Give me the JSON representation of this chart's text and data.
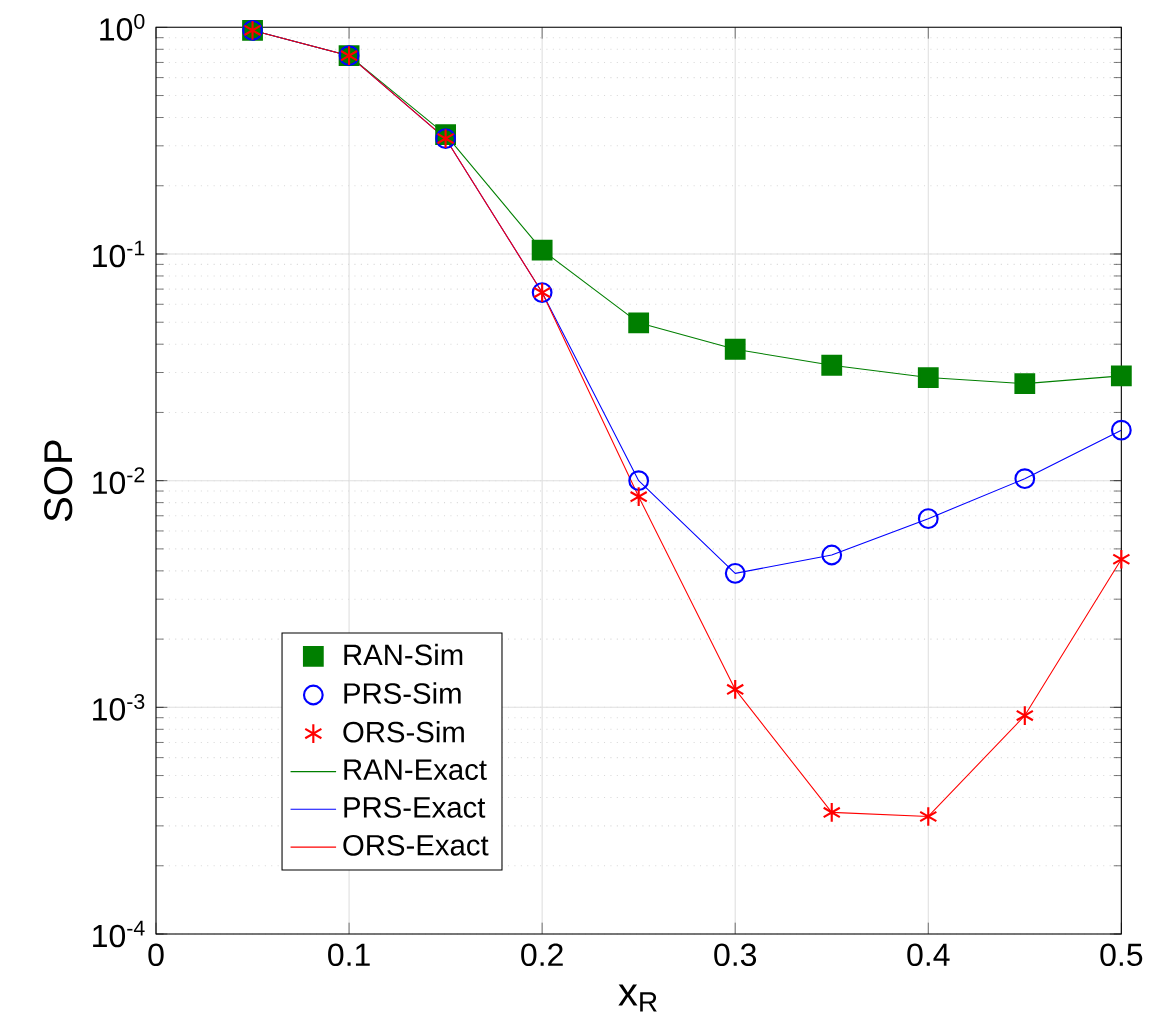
{
  "chart_data": {
    "type": "line",
    "xlabel": "x$_{R}$",
    "ylabel": "SOP",
    "log": "y",
    "grid": true,
    "legend": "bottom left",
    "xlim": [
      0,
      0.5
    ],
    "xticks": [
      0,
      0.1,
      0.2,
      0.3,
      0.4,
      0.5
    ],
    "ylim": [
      0.0001,
      1
    ],
    "yticks": [
      {
        "value": 0.0001,
        "label": "10$^{-4}$"
      },
      {
        "value": 0.001,
        "label": "10$^{-3}$"
      },
      {
        "value": 0.01,
        "label": "10$^{-2}$"
      },
      {
        "value": 0.1,
        "label": "10$^{-1}$"
      },
      {
        "value": 1,
        "label": "10$^{0}$"
      }
    ],
    "x": [
      0.05,
      0.1,
      0.15,
      0.2,
      0.25,
      0.3,
      0.35,
      0.4,
      0.45,
      0.5
    ],
    "series": [
      {
        "name": "RAN-Sim",
        "type": "scatter",
        "marker": "square",
        "color": "#007f00",
        "values": [
          0.97,
          0.75,
          0.336,
          0.104,
          0.0497,
          0.038,
          0.0323,
          0.0285,
          0.0268,
          0.029
        ]
      },
      {
        "name": "PRS-Sim",
        "type": "scatter",
        "marker": "circle",
        "color": "#0000ff",
        "values": [
          0.97,
          0.75,
          0.323,
          0.0676,
          0.01,
          0.0039,
          0.0047,
          0.0068,
          0.0102,
          0.0167
        ]
      },
      {
        "name": "ORS-Sim",
        "type": "scatter",
        "marker": "cross",
        "color": "#ff0000",
        "values": [
          0.97,
          0.75,
          0.323,
          0.0676,
          0.0085,
          0.0012,
          0.000344,
          0.00033,
          0.00092,
          0.0045
        ]
      },
      {
        "name": "RAN-Exact",
        "marker": "none",
        "color": "#007f00",
        "values": [
          0.97,
          0.75,
          0.336,
          0.104,
          0.0497,
          0.038,
          0.0323,
          0.0285,
          0.0268,
          0.029
        ]
      },
      {
        "name": "PRS-Exact",
        "marker": "none",
        "color": "#0000ff",
        "values": [
          0.97,
          0.75,
          0.323,
          0.0676,
          0.01,
          0.0039,
          0.0047,
          0.0068,
          0.0102,
          0.0167
        ]
      },
      {
        "name": "ORS-Exact",
        "marker": "none",
        "color": "#ff0000",
        "values": [
          0.97,
          0.75,
          0.323,
          0.0676,
          0.0085,
          0.0012,
          0.000344,
          0.00033,
          0.00092,
          0.0045
        ]
      }
    ]
  }
}
